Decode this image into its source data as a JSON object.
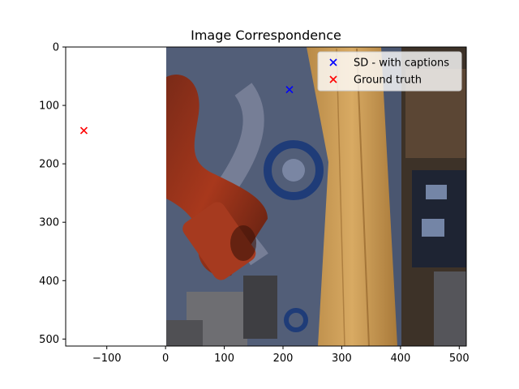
{
  "chart_data": {
    "type": "scatter",
    "title": "Image Correspondence",
    "xlabel": "",
    "ylabel": "",
    "xlim": [
      -170,
      512
    ],
    "ylim": [
      512,
      0
    ],
    "y_inverted": true,
    "xticks": [
      -100,
      0,
      100,
      200,
      300,
      400,
      500
    ],
    "yticks": [
      0,
      100,
      200,
      300,
      400,
      500
    ],
    "background_image_extent": {
      "x": [
        0,
        512
      ],
      "y": [
        512,
        0
      ]
    },
    "grid": false,
    "legend_position": "top-right",
    "series": [
      {
        "name": "SD - with captions",
        "marker": "x",
        "color": "#0000ff",
        "points": [
          {
            "x": 211,
            "y": 73
          }
        ]
      },
      {
        "name": "Ground truth",
        "marker": "x",
        "color": "#ff0000",
        "points": [
          {
            "x": -139,
            "y": 143
          }
        ]
      }
    ]
  }
}
